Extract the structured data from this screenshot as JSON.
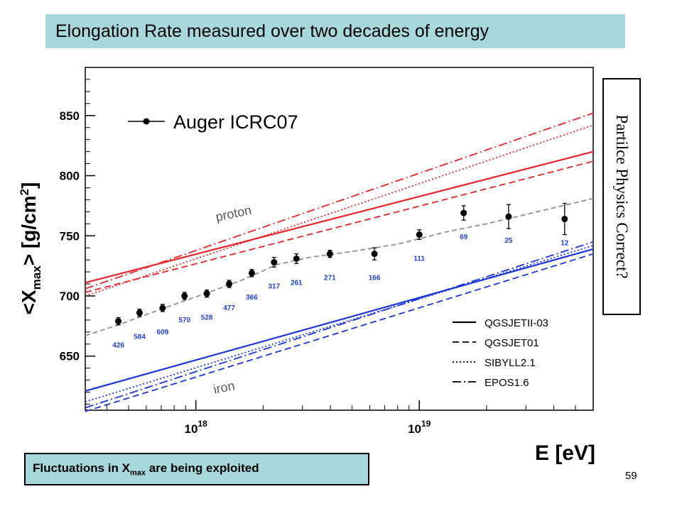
{
  "slide": {
    "title": "Elongation Rate measured over two decades of energy",
    "side_note": "Partilce Physics Correct?",
    "bottom_note_prefix": "Fluctuations in X",
    "bottom_note_sub": "max",
    "bottom_note_suffix": " are being exploited",
    "page_number": "59"
  },
  "chart_data": {
    "type": "scatter",
    "x_scale": "log",
    "xlim": [
      3.2e+17,
      6e+19
    ],
    "ylim": [
      605,
      890
    ],
    "yticks": [
      650,
      700,
      750,
      800,
      850
    ],
    "ytick_labels": [
      "650",
      "700",
      "750",
      "800",
      "850"
    ],
    "xticks": [
      1e+18,
      1e+19
    ],
    "xtick_labels": [
      {
        "base": "10",
        "exp": "18"
      },
      {
        "base": "10",
        "exp": "19"
      }
    ],
    "ylabel": {
      "pre": "<X",
      "sub": "max",
      "mid": "> [g/cm",
      "sup": "2",
      "post": "]"
    },
    "xlabel": "E [eV]",
    "legend_data_label": "Auger ICRC07",
    "model_legend": [
      {
        "name": "QGSJETII-03",
        "style": "solid"
      },
      {
        "name": "QGSJET01",
        "style": "dashed"
      },
      {
        "name": "SIBYLL2.1",
        "style": "dotted"
      },
      {
        "name": "EPOS1.6",
        "style": "dashdot"
      }
    ],
    "curve_labels": {
      "proton": "proton",
      "iron": "iron"
    },
    "data_points": [
      {
        "E": 4.5e+17,
        "X": 679,
        "err": 3,
        "n": "426"
      },
      {
        "E": 5.6e+17,
        "X": 686,
        "err": 3,
        "n": "584"
      },
      {
        "E": 7.1e+17,
        "X": 690,
        "err": 3,
        "n": "609"
      },
      {
        "E": 8.9e+17,
        "X": 700,
        "err": 3,
        "n": "570"
      },
      {
        "E": 1.12e+18,
        "X": 702,
        "err": 3,
        "n": "528"
      },
      {
        "E": 1.41e+18,
        "X": 710,
        "err": 3,
        "n": "477"
      },
      {
        "E": 1.78e+18,
        "X": 719,
        "err": 3,
        "n": "366"
      },
      {
        "E": 2.24e+18,
        "X": 728,
        "err": 4,
        "n": "317"
      },
      {
        "E": 2.82e+18,
        "X": 731,
        "err": 4,
        "n": "261"
      },
      {
        "E": 3.98e+18,
        "X": 735,
        "err": 3,
        "n": "271"
      },
      {
        "E": 6.3e+18,
        "X": 735,
        "err": 5,
        "n": "166"
      },
      {
        "E": 1e+19,
        "X": 751,
        "err": 4,
        "n": "111"
      },
      {
        "E": 1.58e+19,
        "X": 769,
        "err": 6,
        "n": "69"
      },
      {
        "E": 2.51e+19,
        "X": 766,
        "err": 10,
        "n": "25"
      },
      {
        "E": 4.47e+19,
        "X": 764,
        "err": 13,
        "n": "12"
      }
    ],
    "fit_curve": [
      {
        "E": 3.2e+17,
        "X": 667
      },
      {
        "E": 4.5e+17,
        "X": 676
      },
      {
        "E": 7e+17,
        "X": 689
      },
      {
        "E": 1.1e+18,
        "X": 702
      },
      {
        "E": 1.6e+18,
        "X": 713
      },
      {
        "E": 2.3e+18,
        "X": 726
      },
      {
        "E": 3.2e+18,
        "X": 732
      },
      {
        "E": 5e+18,
        "X": 737
      },
      {
        "E": 8e+18,
        "X": 743
      },
      {
        "E": 1.3e+19,
        "X": 753
      },
      {
        "E": 2e+19,
        "X": 760
      },
      {
        "E": 3.2e+19,
        "X": 769
      },
      {
        "E": 6e+19,
        "X": 781
      }
    ],
    "model_lines": [
      {
        "group": "proton",
        "style": "solid",
        "X_start": 711,
        "X_end": 820
      },
      {
        "group": "proton",
        "style": "dashed",
        "X_start": 703,
        "X_end": 812
      },
      {
        "group": "proton",
        "style": "dotted",
        "X_start": 700,
        "X_end": 842
      },
      {
        "group": "proton",
        "style": "dashdot",
        "X_start": 706,
        "X_end": 852
      },
      {
        "group": "iron",
        "style": "solid",
        "X_start": 621,
        "X_end": 739
      },
      {
        "group": "iron",
        "style": "dashed",
        "X_start": 604,
        "X_end": 735
      },
      {
        "group": "iron",
        "style": "dotted",
        "X_start": 612,
        "X_end": 742
      },
      {
        "group": "iron",
        "style": "dashdot",
        "X_start": 607,
        "X_end": 745
      }
    ],
    "colors": {
      "proton": "#e8242a",
      "iron": "#1a35d8",
      "fit": "#999999",
      "points": "#000000",
      "counts": "#1f3fd0"
    }
  }
}
